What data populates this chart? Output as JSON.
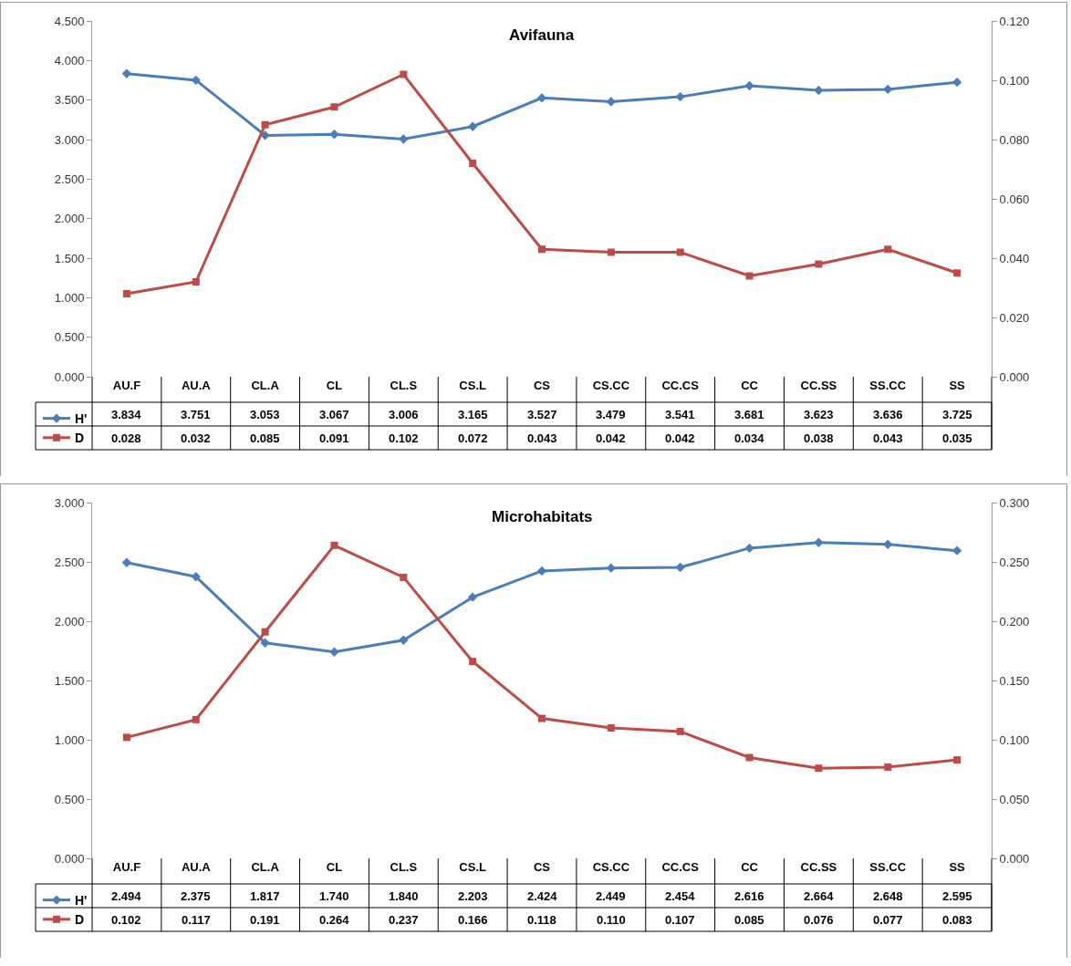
{
  "chart_data": [
    {
      "type": "line",
      "title": "Avifauna",
      "categories": [
        "AU.F",
        "AU.A",
        "CL.A",
        "CL",
        "CL.S",
        "CS.L",
        "CS",
        "CS.CC",
        "CC.CS",
        "CC",
        "CC.SS",
        "SS.CC",
        "SS"
      ],
      "series": [
        {
          "name": "H'",
          "color": "#4a7ebb",
          "marker": "diamond",
          "values": [
            3.834,
            3.751,
            3.053,
            3.067,
            3.006,
            3.165,
            3.527,
            3.479,
            3.541,
            3.681,
            3.623,
            3.636,
            3.725
          ],
          "value_labels": [
            "3.834",
            "3.751",
            "3.053",
            "3.067",
            "3.006",
            "3.165",
            "3.527",
            "3.479",
            "3.541",
            "3.681",
            "3.623",
            "3.636",
            "3.725"
          ]
        },
        {
          "name": "D",
          "color": "#be4b48",
          "marker": "square",
          "axis": "y2",
          "values": [
            0.028,
            0.032,
            0.085,
            0.091,
            0.102,
            0.072,
            0.043,
            0.042,
            0.042,
            0.034,
            0.038,
            0.043,
            0.035
          ],
          "value_labels": [
            "0.028",
            "0.032",
            "0.085",
            "0.091",
            "0.102",
            "0.072",
            "0.043",
            "0.042",
            "0.042",
            "0.034",
            "0.038",
            "0.043",
            "0.035"
          ]
        }
      ],
      "ylim": [
        0,
        4.5
      ],
      "yticks": [
        {
          "value": 0,
          "label": "0.000"
        },
        {
          "value": 0.5,
          "label": "0.500"
        },
        {
          "value": 1,
          "label": "1.000"
        },
        {
          "value": 1.5,
          "label": "1.500"
        },
        {
          "value": 2,
          "label": "2.000"
        },
        {
          "value": 2.5,
          "label": "2.500"
        },
        {
          "value": 3,
          "label": "3.000"
        },
        {
          "value": 3.5,
          "label": "3.500"
        },
        {
          "value": 4,
          "label": "4.000"
        },
        {
          "value": 4.5,
          "label": "4.500"
        }
      ],
      "y2lim": [
        0,
        0.12
      ],
      "y2ticks": [
        {
          "value": 0,
          "label": "0.000"
        },
        {
          "value": 0.02,
          "label": "0.020"
        },
        {
          "value": 0.04,
          "label": "0.040"
        },
        {
          "value": 0.06,
          "label": "0.060"
        },
        {
          "value": 0.08,
          "label": "0.080"
        },
        {
          "value": 0.1,
          "label": "0.100"
        },
        {
          "value": 0.12,
          "label": "0.120"
        }
      ],
      "legend": "bottom left",
      "grid": false
    },
    {
      "type": "line",
      "title": "Microhabitats",
      "categories": [
        "AU.F",
        "AU.A",
        "CL.A",
        "CL",
        "CL.S",
        "CS.L",
        "CS",
        "CS.CC",
        "CC.CS",
        "CC",
        "CC.SS",
        "SS.CC",
        "SS"
      ],
      "series": [
        {
          "name": "H'",
          "color": "#4a7ebb",
          "marker": "diamond",
          "values": [
            2.494,
            2.375,
            1.817,
            1.74,
            1.84,
            2.203,
            2.424,
            2.449,
            2.454,
            2.616,
            2.664,
            2.648,
            2.595
          ],
          "value_labels": [
            "2.494",
            "2.375",
            "1.817",
            "1.740",
            "1.840",
            "2.203",
            "2.424",
            "2.449",
            "2.454",
            "2.616",
            "2.664",
            "2.648",
            "2.595"
          ]
        },
        {
          "name": "D",
          "color": "#be4b48",
          "marker": "square",
          "axis": "y2",
          "values": [
            0.102,
            0.117,
            0.191,
            0.264,
            0.237,
            0.166,
            0.118,
            0.11,
            0.107,
            0.085,
            0.076,
            0.077,
            0.083
          ],
          "value_labels": [
            "0.102",
            "0.117",
            "0.191",
            "0.264",
            "0.237",
            "0.166",
            "0.118",
            "0.110",
            "0.107",
            "0.085",
            "0.076",
            "0.077",
            "0.083"
          ]
        }
      ],
      "ylim": [
        0,
        3
      ],
      "yticks": [
        {
          "value": 0,
          "label": "0.000"
        },
        {
          "value": 0.5,
          "label": "0.500"
        },
        {
          "value": 1,
          "label": "1.000"
        },
        {
          "value": 1.5,
          "label": "1.500"
        },
        {
          "value": 2,
          "label": "2.000"
        },
        {
          "value": 2.5,
          "label": "2.500"
        },
        {
          "value": 3,
          "label": "3.000"
        }
      ],
      "y2lim": [
        0,
        0.3
      ],
      "y2ticks": [
        {
          "value": 0,
          "label": "0.000"
        },
        {
          "value": 0.05,
          "label": "0.050"
        },
        {
          "value": 0.1,
          "label": "0.100"
        },
        {
          "value": 0.15,
          "label": "0.150"
        },
        {
          "value": 0.2,
          "label": "0.200"
        },
        {
          "value": 0.25,
          "label": "0.250"
        },
        {
          "value": 0.3,
          "label": "0.300"
        }
      ],
      "legend": "bottom left",
      "grid": false
    }
  ]
}
